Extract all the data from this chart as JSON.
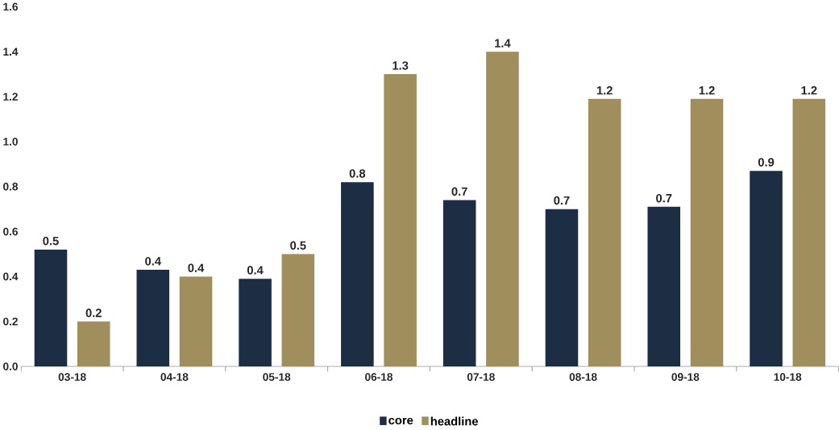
{
  "chart_data": {
    "type": "bar",
    "categories": [
      "03-18",
      "04-18",
      "05-18",
      "06-18",
      "07-18",
      "08-18",
      "09-18",
      "10-18"
    ],
    "series": [
      {
        "name": "core",
        "color": "#1c2d44",
        "values": [
          0.52,
          0.43,
          0.39,
          0.82,
          0.74,
          0.7,
          0.71,
          0.87
        ],
        "value_labels": [
          "0.5",
          "0.4",
          "0.4",
          "0.8",
          "0.7",
          "0.7",
          "0.7",
          "0.9"
        ]
      },
      {
        "name": "headline",
        "color": "#a08f5c",
        "values": [
          0.2,
          0.4,
          0.5,
          1.3,
          1.4,
          1.19,
          1.19,
          1.19
        ],
        "value_labels": [
          "0.2",
          "0.4",
          "0.5",
          "1.3",
          "1.4",
          "1.2",
          "1.2",
          "1.2"
        ]
      }
    ],
    "ylim": [
      0,
      1.6
    ],
    "yticks": [
      {
        "value": 0,
        "label": "0.0"
      },
      0.2,
      0.4,
      0.6,
      0.8,
      {
        "value": 1.0,
        "label": "1.0"
      },
      1.2,
      1.4,
      1.6
    ],
    "grid": false,
    "legend": "bottom"
  }
}
